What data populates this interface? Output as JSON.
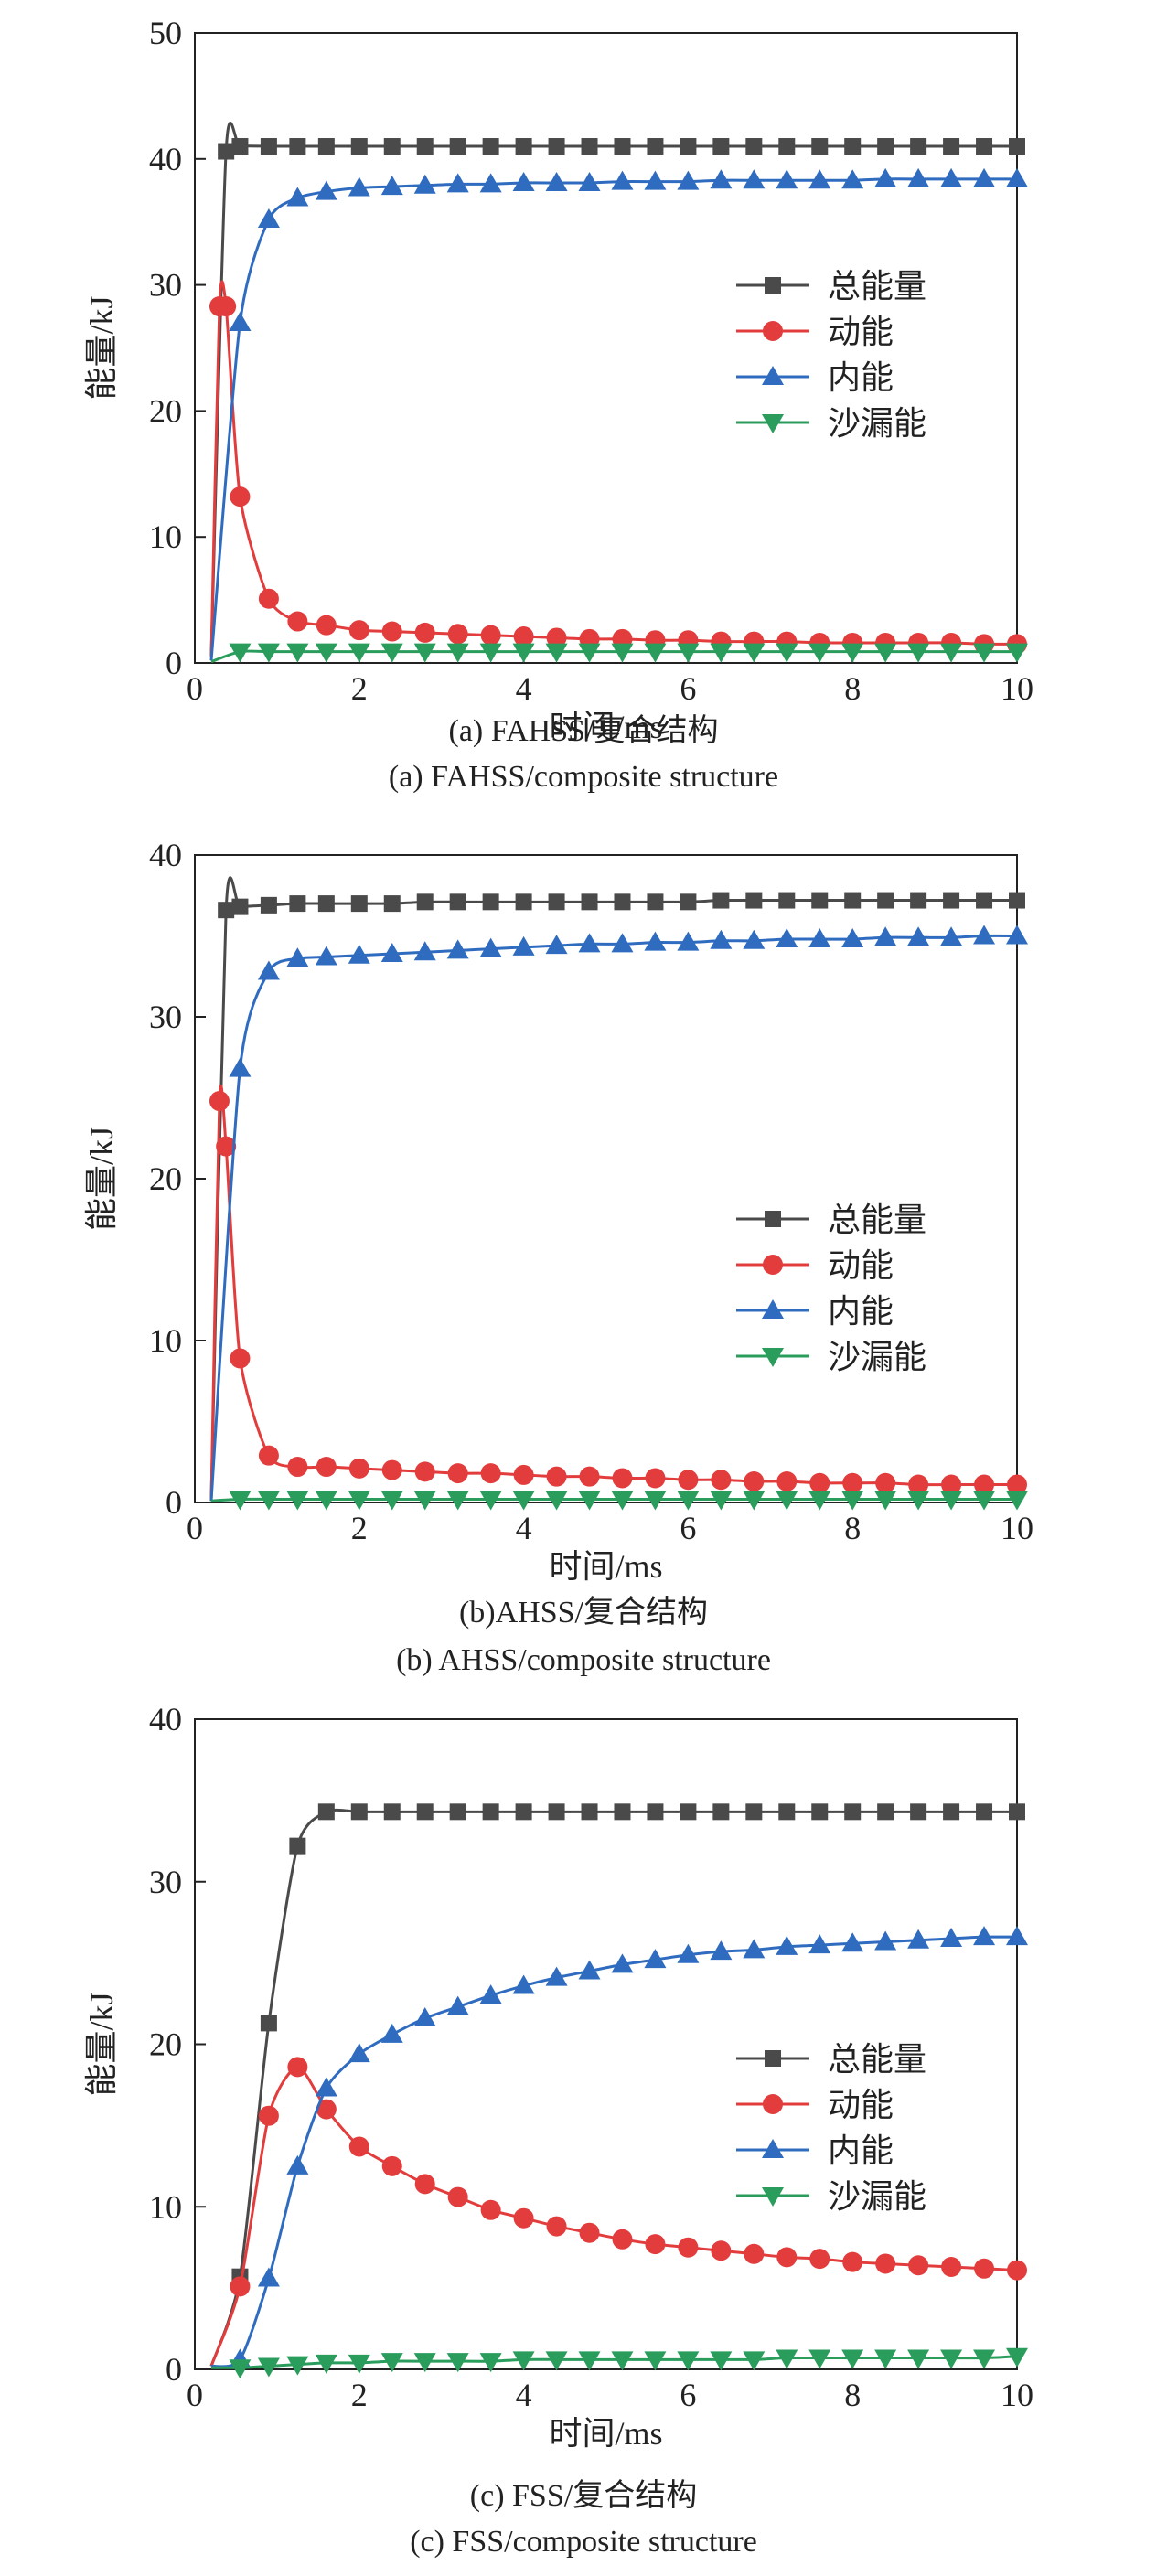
{
  "figures": [
    {
      "caption_cn": "(a) FAHSS/复合结构",
      "caption_en": "(a) FAHSS/composite structure"
    },
    {
      "caption_cn": "(b)AHSS/复合结构",
      "caption_en": "(b) AHSS/composite structure"
    },
    {
      "caption_cn": "(c) FSS/复合结构",
      "caption_en": "(c) FSS/composite structure"
    }
  ],
  "colors": {
    "总能量": "#4a4a4a",
    "动能": "#e23c3c",
    "内能": "#2f6cc0",
    "沙漏能": "#2a9d5c"
  },
  "chart_data": [
    {
      "type": "line",
      "xlabel": "时间/ms",
      "ylabel": "能量/kJ",
      "xlim": [
        0,
        10
      ],
      "ylim": [
        0,
        50
      ],
      "xticks": [
        0,
        2,
        4,
        6,
        8,
        10
      ],
      "yticks": [
        0,
        10,
        20,
        30,
        40,
        50
      ],
      "legend_position": "right-middle",
      "series": [
        {
          "name": "总能量",
          "marker": "square",
          "x": [
            0.2,
            0.38,
            0.55,
            0.9,
            1.25,
            1.6,
            2,
            2.4,
            2.8,
            3.2,
            3.6,
            4,
            4.4,
            4.8,
            5.2,
            5.6,
            6,
            6.4,
            6.8,
            7.2,
            7.6,
            8,
            8.4,
            8.8,
            9.2,
            9.6,
            10
          ],
          "y": [
            0.5,
            40.6,
            41.0,
            41.0,
            41.0,
            41.0,
            41.0,
            41.0,
            41.0,
            41.0,
            41.0,
            41.0,
            41.0,
            41.0,
            41.0,
            41.0,
            41.0,
            41.0,
            41.0,
            41.0,
            41.0,
            41.0,
            41.0,
            41.0,
            41.0,
            41.0,
            41.0
          ]
        },
        {
          "name": "动能",
          "marker": "circle",
          "x": [
            0.2,
            0.3,
            0.38,
            0.55,
            0.9,
            1.25,
            1.6,
            2,
            2.4,
            2.8,
            3.2,
            3.6,
            4,
            4.4,
            4.8,
            5.2,
            5.6,
            6,
            6.4,
            6.8,
            7.2,
            7.6,
            8,
            8.4,
            8.8,
            9.2,
            9.6,
            10
          ],
          "y": [
            0.5,
            28.3,
            28.3,
            13.2,
            5.1,
            3.3,
            3.0,
            2.6,
            2.5,
            2.4,
            2.3,
            2.2,
            2.1,
            2.0,
            1.9,
            1.9,
            1.8,
            1.8,
            1.7,
            1.7,
            1.7,
            1.6,
            1.6,
            1.6,
            1.6,
            1.6,
            1.5,
            1.5
          ]
        },
        {
          "name": "内能",
          "marker": "triangle-up",
          "x": [
            0.2,
            0.55,
            0.9,
            1.25,
            1.6,
            2,
            2.4,
            2.8,
            3.2,
            3.6,
            4,
            4.4,
            4.8,
            5.2,
            5.6,
            6,
            6.4,
            6.8,
            7.2,
            7.6,
            8,
            8.4,
            8.8,
            9.2,
            9.6,
            10
          ],
          "y": [
            0.2,
            27.0,
            35.2,
            36.9,
            37.4,
            37.7,
            37.8,
            37.9,
            38.0,
            38.0,
            38.1,
            38.1,
            38.1,
            38.2,
            38.2,
            38.2,
            38.3,
            38.3,
            38.3,
            38.3,
            38.3,
            38.4,
            38.4,
            38.4,
            38.4,
            38.4
          ]
        },
        {
          "name": "沙漏能",
          "marker": "triangle-down",
          "x": [
            0.2,
            0.55,
            0.9,
            1.25,
            1.6,
            2,
            2.4,
            2.8,
            3.2,
            3.6,
            4,
            4.4,
            4.8,
            5.2,
            5.6,
            6,
            6.4,
            6.8,
            7.2,
            7.6,
            8,
            8.4,
            8.8,
            9.2,
            9.6,
            10
          ],
          "y": [
            0.1,
            0.9,
            0.9,
            0.9,
            0.9,
            0.9,
            0.9,
            0.9,
            0.9,
            0.9,
            0.9,
            0.9,
            0.9,
            0.9,
            0.9,
            0.9,
            0.9,
            0.9,
            0.9,
            0.9,
            0.9,
            0.9,
            0.9,
            0.9,
            0.9,
            0.9
          ]
        }
      ]
    },
    {
      "type": "line",
      "xlabel": "时间/ms",
      "ylabel": "能量/kJ",
      "xlim": [
        0,
        10
      ],
      "ylim": [
        0,
        40
      ],
      "xticks": [
        0,
        2,
        4,
        6,
        8,
        10
      ],
      "yticks": [
        0,
        10,
        20,
        30,
        40
      ],
      "legend_position": "right-middle",
      "series": [
        {
          "name": "总能量",
          "marker": "square",
          "x": [
            0.2,
            0.38,
            0.55,
            0.9,
            1.25,
            1.6,
            2,
            2.4,
            2.8,
            3.2,
            3.6,
            4,
            4.4,
            4.8,
            5.2,
            5.6,
            6,
            6.4,
            6.8,
            7.2,
            7.6,
            8,
            8.4,
            8.8,
            9.2,
            9.6,
            10
          ],
          "y": [
            0.1,
            36.6,
            36.8,
            36.9,
            37.0,
            37.0,
            37.0,
            37.0,
            37.1,
            37.1,
            37.1,
            37.1,
            37.1,
            37.1,
            37.1,
            37.1,
            37.1,
            37.2,
            37.2,
            37.2,
            37.2,
            37.2,
            37.2,
            37.2,
            37.2,
            37.2,
            37.2
          ]
        },
        {
          "name": "动能",
          "marker": "circle",
          "x": [
            0.2,
            0.3,
            0.38,
            0.55,
            0.9,
            1.25,
            1.6,
            2,
            2.4,
            2.8,
            3.2,
            3.6,
            4,
            4.4,
            4.8,
            5.2,
            5.6,
            6,
            6.4,
            6.8,
            7.2,
            7.6,
            8,
            8.4,
            8.8,
            9.2,
            9.6,
            10
          ],
          "y": [
            0.1,
            24.8,
            22.0,
            8.9,
            2.9,
            2.2,
            2.2,
            2.1,
            2.0,
            1.9,
            1.8,
            1.8,
            1.7,
            1.6,
            1.6,
            1.5,
            1.5,
            1.4,
            1.4,
            1.3,
            1.3,
            1.2,
            1.2,
            1.2,
            1.1,
            1.1,
            1.1,
            1.1
          ]
        },
        {
          "name": "内能",
          "marker": "triangle-up",
          "x": [
            0.2,
            0.55,
            0.9,
            1.25,
            1.6,
            2,
            2.4,
            2.8,
            3.2,
            3.6,
            4,
            4.4,
            4.8,
            5.2,
            5.6,
            6,
            6.4,
            6.8,
            7.2,
            7.6,
            8,
            8.4,
            8.8,
            9.2,
            9.6,
            10
          ],
          "y": [
            0.1,
            26.8,
            32.8,
            33.6,
            33.7,
            33.8,
            33.9,
            34.0,
            34.1,
            34.2,
            34.3,
            34.4,
            34.5,
            34.5,
            34.6,
            34.6,
            34.7,
            34.7,
            34.8,
            34.8,
            34.8,
            34.9,
            34.9,
            34.9,
            35.0,
            35.0
          ]
        },
        {
          "name": "沙漏能",
          "marker": "triangle-down",
          "x": [
            0.2,
            0.55,
            0.9,
            1.25,
            1.6,
            2,
            2.4,
            2.8,
            3.2,
            3.6,
            4,
            4.4,
            4.8,
            5.2,
            5.6,
            6,
            6.4,
            6.8,
            7.2,
            7.6,
            8,
            8.4,
            8.8,
            9.2,
            9.6,
            10
          ],
          "y": [
            0.1,
            0.2,
            0.2,
            0.2,
            0.2,
            0.2,
            0.2,
            0.2,
            0.2,
            0.2,
            0.2,
            0.2,
            0.2,
            0.2,
            0.2,
            0.2,
            0.2,
            0.2,
            0.2,
            0.2,
            0.2,
            0.2,
            0.2,
            0.2,
            0.2,
            0.2
          ]
        }
      ]
    },
    {
      "type": "line",
      "xlabel": "时间/ms",
      "ylabel": "能量/kJ",
      "xlim": [
        0,
        10
      ],
      "ylim": [
        0,
        40
      ],
      "xticks": [
        0,
        2,
        4,
        6,
        8,
        10
      ],
      "yticks": [
        0,
        10,
        20,
        30,
        40
      ],
      "legend_position": "right-middle",
      "series": [
        {
          "name": "总能量",
          "marker": "square",
          "x": [
            0.2,
            0.55,
            0.9,
            1.25,
            1.6,
            2,
            2.4,
            2.8,
            3.2,
            3.6,
            4,
            4.4,
            4.8,
            5.2,
            5.6,
            6,
            6.4,
            6.8,
            7.2,
            7.6,
            8,
            8.4,
            8.8,
            9.2,
            9.6,
            10
          ],
          "y": [
            0.2,
            5.7,
            21.3,
            32.2,
            34.3,
            34.3,
            34.3,
            34.3,
            34.3,
            34.3,
            34.3,
            34.3,
            34.3,
            34.3,
            34.3,
            34.3,
            34.3,
            34.3,
            34.3,
            34.3,
            34.3,
            34.3,
            34.3,
            34.3,
            34.3,
            34.3
          ]
        },
        {
          "name": "动能",
          "marker": "circle",
          "x": [
            0.2,
            0.55,
            0.9,
            1.25,
            1.6,
            2,
            2.4,
            2.8,
            3.2,
            3.6,
            4,
            4.4,
            4.8,
            5.2,
            5.6,
            6,
            6.4,
            6.8,
            7.2,
            7.6,
            8,
            8.4,
            8.8,
            9.2,
            9.6,
            10
          ],
          "y": [
            0.2,
            5.1,
            15.6,
            18.6,
            16.0,
            13.7,
            12.5,
            11.4,
            10.6,
            9.8,
            9.3,
            8.8,
            8.4,
            8.0,
            7.7,
            7.5,
            7.3,
            7.1,
            6.9,
            6.8,
            6.6,
            6.5,
            6.4,
            6.3,
            6.2,
            6.1
          ]
        },
        {
          "name": "内能",
          "marker": "triangle-up",
          "x": [
            0.2,
            0.55,
            0.9,
            1.25,
            1.6,
            2,
            2.4,
            2.8,
            3.2,
            3.6,
            4,
            4.4,
            4.8,
            5.2,
            5.6,
            6,
            6.4,
            6.8,
            7.2,
            7.6,
            8,
            8.4,
            8.8,
            9.2,
            9.6,
            10
          ],
          "y": [
            0.2,
            0.6,
            5.6,
            12.5,
            17.3,
            19.4,
            20.6,
            21.6,
            22.3,
            23.0,
            23.6,
            24.1,
            24.5,
            24.9,
            25.2,
            25.5,
            25.7,
            25.8,
            26.0,
            26.1,
            26.2,
            26.3,
            26.4,
            26.5,
            26.6,
            26.6
          ]
        },
        {
          "name": "沙漏能",
          "marker": "triangle-down",
          "x": [
            0.2,
            0.55,
            0.9,
            1.25,
            1.6,
            2,
            2.4,
            2.8,
            3.2,
            3.6,
            4,
            4.4,
            4.8,
            5.2,
            5.6,
            6,
            6.4,
            6.8,
            7.2,
            7.6,
            8,
            8.4,
            8.8,
            9.2,
            9.6,
            10
          ],
          "y": [
            0.1,
            0.1,
            0.2,
            0.3,
            0.4,
            0.4,
            0.5,
            0.5,
            0.5,
            0.5,
            0.6,
            0.6,
            0.6,
            0.6,
            0.6,
            0.6,
            0.6,
            0.6,
            0.7,
            0.7,
            0.7,
            0.7,
            0.7,
            0.7,
            0.7,
            0.8
          ]
        }
      ]
    }
  ]
}
